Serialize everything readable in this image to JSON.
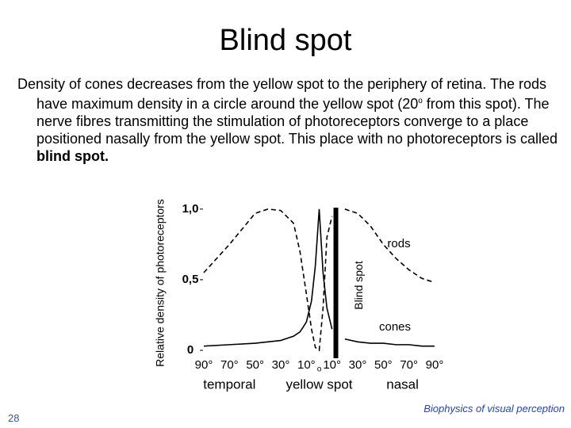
{
  "title": "Blind spot",
  "body": [
    "Density of cones decreases from the yellow spot to the periphery of retina. The rods have maximum density in a circle around the yellow spot (20",
    "o",
    " from this spot). The nerve fibres transmitting the stimulation of photoreceptors converge to a place positioned nasally from the yellow spot. This place with no photoreceptors is called ",
    "blind spot."
  ],
  "page_number": "28",
  "footer": "Biophysics of visual perception",
  "chart_data": {
    "type": "line",
    "y_label": "Relative density of photoreceptors",
    "x": [
      -90,
      -70,
      -50,
      -40,
      -30,
      -20,
      -15,
      -10,
      -6,
      -3,
      0,
      3,
      6,
      10,
      13,
      17,
      20,
      30,
      40,
      50,
      60,
      70,
      80,
      90
    ],
    "series": [
      {
        "name": "rods",
        "color": "#000000",
        "dashed": true,
        "values": [
          0.55,
          0.75,
          0.97,
          1.0,
          0.99,
          0.9,
          0.7,
          0.4,
          0.15,
          0.02,
          0,
          0.3,
          0.8,
          0.95,
          null,
          null,
          1.0,
          0.97,
          0.88,
          0.75,
          0.65,
          0.57,
          0.51,
          0.48
        ]
      },
      {
        "name": "cones",
        "color": "#000000",
        "dashed": false,
        "values": [
          0.03,
          0.04,
          0.05,
          0.06,
          0.07,
          0.1,
          0.13,
          0.2,
          0.35,
          0.6,
          1.0,
          0.55,
          0.3,
          0.15,
          null,
          null,
          0.08,
          0.06,
          0.05,
          0.05,
          0.04,
          0.04,
          0.03,
          0.03
        ]
      }
    ],
    "blind_spot": {
      "label": "Blind spot",
      "x": 13
    },
    "xlim": [
      -90,
      90
    ],
    "ylim": [
      0,
      1.1
    ],
    "xticks": [
      {
        "value": -90,
        "label": "90°"
      },
      {
        "value": -70,
        "label": "70°"
      },
      {
        "value": -50,
        "label": "50°"
      },
      {
        "value": -30,
        "label": "30°"
      },
      {
        "value": -10,
        "label": "10°"
      },
      {
        "value": 0,
        "label": "o"
      },
      {
        "value": 10,
        "label": "10°"
      },
      {
        "value": 30,
        "label": "30°"
      },
      {
        "value": 50,
        "label": "50°"
      },
      {
        "value": 70,
        "label": "70°"
      },
      {
        "value": 90,
        "label": "90°"
      }
    ],
    "yticks": [
      0,
      {
        "value": 0.5,
        "label": "0,5"
      },
      {
        "value": 1,
        "label": "1,0"
      }
    ],
    "region_labels": [
      {
        "value": -70,
        "label": "temporal"
      },
      {
        "value": 0,
        "label": "yellow spot"
      },
      {
        "value": 65,
        "label": "nasal"
      }
    ]
  }
}
